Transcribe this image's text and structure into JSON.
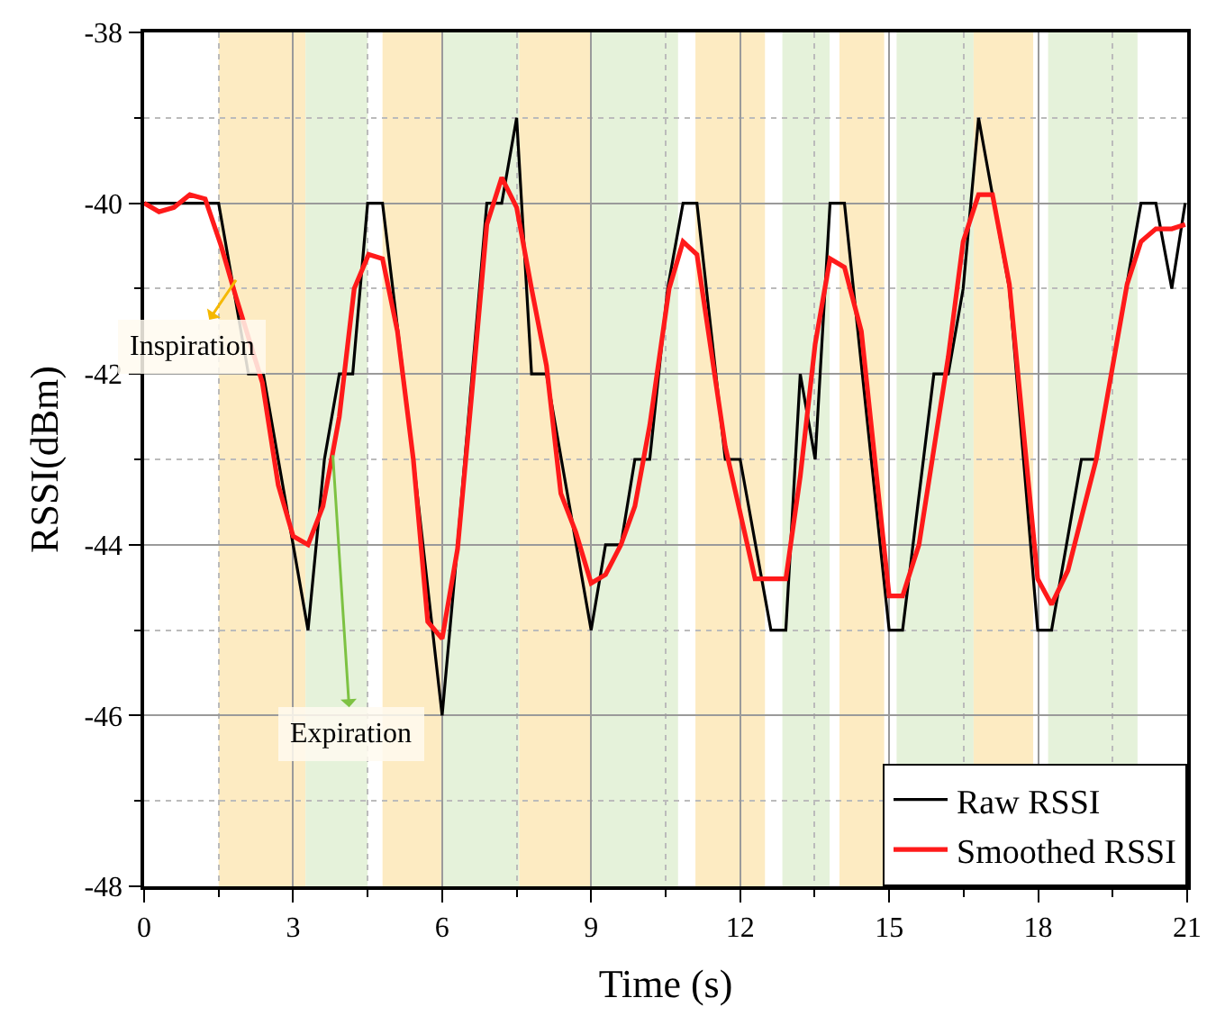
{
  "chart_data": {
    "type": "line",
    "xlabel": "Time (s)",
    "ylabel": "RSSI(dBm)",
    "xlim": [
      0,
      21
    ],
    "xticks": [
      0,
      3,
      6,
      9,
      12,
      15,
      18,
      21
    ],
    "ylim": [
      -48,
      -38
    ],
    "yticks": [
      -48,
      -46,
      -44,
      -42,
      -40,
      -38
    ],
    "grid": true,
    "legend": "bottom right",
    "line_style": "solid",
    "marker": "none",
    "series": [
      {
        "name": "Raw RSSI",
        "color": "#000000",
        "x": [
          0,
          1.5,
          2.1,
          2.4,
          3.3,
          3.63,
          3.93,
          4.2,
          4.5,
          4.8,
          5.42,
          6.0,
          6.31,
          6.9,
          7.2,
          7.5,
          7.8,
          8.1,
          9.0,
          9.29,
          9.6,
          9.88,
          10.18,
          10.54,
          10.85,
          11.13,
          11.7,
          12.0,
          12.62,
          12.92,
          13.21,
          13.51,
          13.81,
          14.1,
          15.0,
          15.27,
          15.9,
          16.19,
          16.49,
          16.8,
          17.42,
          17.99,
          18.27,
          18.87,
          19.17,
          20.07,
          20.37,
          20.69,
          20.96
        ],
        "values": [
          -40,
          -40,
          -42,
          -42,
          -45,
          -43,
          -42,
          -42,
          -40,
          -40,
          -43,
          -46,
          -44,
          -40,
          -40,
          -39,
          -42,
          -42,
          -45,
          -44,
          -44,
          -43,
          -43,
          -41,
          -40,
          -40,
          -43,
          -43,
          -45,
          -45,
          -42,
          -43,
          -40,
          -40,
          -45,
          -45,
          -42,
          -42,
          -41,
          -39,
          -41,
          -45,
          -45,
          -43,
          -43,
          -40,
          -40,
          -41,
          -40
        ]
      },
      {
        "name": "Smoothed RSSI",
        "color": "#ff1a1a",
        "x": [
          0,
          0.3,
          0.6,
          0.92,
          1.23,
          1.55,
          1.85,
          2.38,
          2.7,
          3.0,
          3.3,
          3.6,
          3.93,
          4.23,
          4.52,
          4.8,
          5.1,
          5.42,
          5.71,
          6.0,
          6.31,
          6.61,
          6.9,
          7.2,
          7.5,
          7.8,
          8.1,
          8.39,
          8.69,
          9.0,
          9.29,
          9.6,
          9.88,
          10.18,
          10.57,
          10.85,
          11.13,
          11.7,
          12.3,
          12.92,
          13.21,
          13.51,
          13.81,
          14.1,
          14.44,
          15.0,
          15.27,
          15.6,
          16.19,
          16.49,
          16.8,
          17.08,
          17.42,
          17.99,
          18.27,
          18.6,
          19.17,
          19.79,
          20.07,
          20.37,
          20.69,
          20.96
        ],
        "values": [
          -40,
          -40.1,
          -40.05,
          -39.9,
          -39.95,
          -40.5,
          -41.1,
          -42.1,
          -43.3,
          -43.9,
          -44,
          -43.55,
          -42.5,
          -41,
          -40.6,
          -40.65,
          -41.5,
          -43,
          -44.9,
          -45.1,
          -44.05,
          -42.15,
          -40.25,
          -39.7,
          -40.05,
          -41,
          -41.9,
          -43.4,
          -43.85,
          -44.45,
          -44.35,
          -44,
          -43.55,
          -42.6,
          -41,
          -40.45,
          -40.6,
          -42.85,
          -44.4,
          -44.4,
          -43.2,
          -41.65,
          -40.65,
          -40.75,
          -41.5,
          -44.6,
          -44.6,
          -44,
          -41.8,
          -40.45,
          -39.9,
          -39.9,
          -40.95,
          -44.4,
          -44.7,
          -44.3,
          -43,
          -40.95,
          -40.45,
          -40.3,
          -40.3,
          -40.25
        ]
      }
    ],
    "bands": [
      {
        "axis": "x",
        "from": 1.5,
        "to": 3.25,
        "color": "#fdebc2"
      },
      {
        "axis": "x",
        "from": 3.25,
        "to": 4.5,
        "color": "#e5f2da"
      },
      {
        "axis": "x",
        "from": 4.8,
        "to": 6.0,
        "color": "#fdebc2"
      },
      {
        "axis": "x",
        "from": 6.0,
        "to": 7.55,
        "color": "#e5f2da"
      },
      {
        "axis": "x",
        "from": 7.55,
        "to": 9.0,
        "color": "#fdebc2"
      },
      {
        "axis": "x",
        "from": 9.0,
        "to": 10.75,
        "color": "#e5f2da"
      },
      {
        "axis": "x",
        "from": 11.1,
        "to": 12.5,
        "color": "#fdebc2"
      },
      {
        "axis": "x",
        "from": 12.85,
        "to": 13.8,
        "color": "#e5f2da"
      },
      {
        "axis": "x",
        "from": 14.0,
        "to": 14.9,
        "color": "#fdebc2"
      },
      {
        "axis": "x",
        "from": 15.15,
        "to": 16.7,
        "color": "#e5f2da"
      },
      {
        "axis": "x",
        "from": 16.7,
        "to": 17.9,
        "color": "#fdebc2"
      },
      {
        "axis": "x",
        "from": 18.2,
        "to": 20.0,
        "color": "#e5f2da"
      }
    ],
    "annotations": [
      {
        "text": "Inspiration",
        "x": 1.85,
        "y": -40.9
      },
      {
        "text": "Expiration",
        "x": 3.8,
        "y": -42.95
      }
    ]
  }
}
